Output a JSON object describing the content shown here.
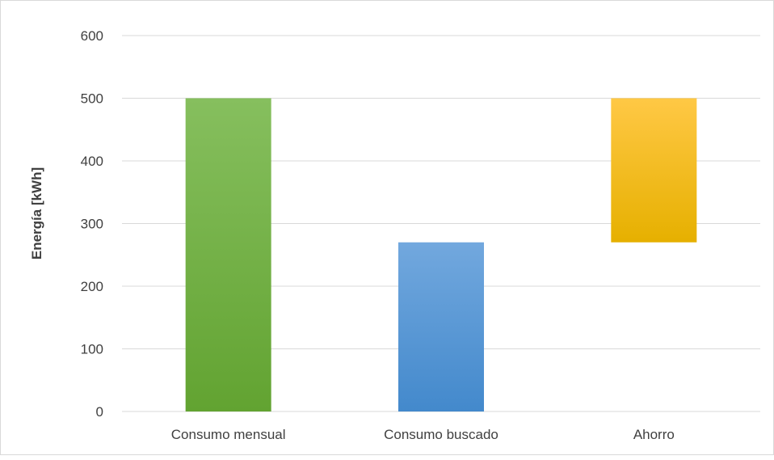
{
  "chart_data": {
    "type": "bar",
    "categories": [
      "Consumo mensual",
      "Consumo buscado",
      "Ahorro"
    ],
    "bars": [
      {
        "category": "Consumo mensual",
        "base": 0,
        "value": 500,
        "color_top": "#86bf5e",
        "color_bottom": "#62a331"
      },
      {
        "category": "Consumo buscado",
        "base": 0,
        "value": 270,
        "color_top": "#72a8de",
        "color_bottom": "#4389cc"
      },
      {
        "category": "Ahorro",
        "base": 270,
        "value": 500,
        "color_top": "#ffc845",
        "color_bottom": "#e6b000"
      }
    ],
    "xlabel": "",
    "ylabel": "Energía [kWh]",
    "ylim": [
      0,
      600
    ],
    "yticks": [
      0,
      100,
      200,
      300,
      400,
      500,
      600
    ],
    "grid": true,
    "legend": "none"
  }
}
